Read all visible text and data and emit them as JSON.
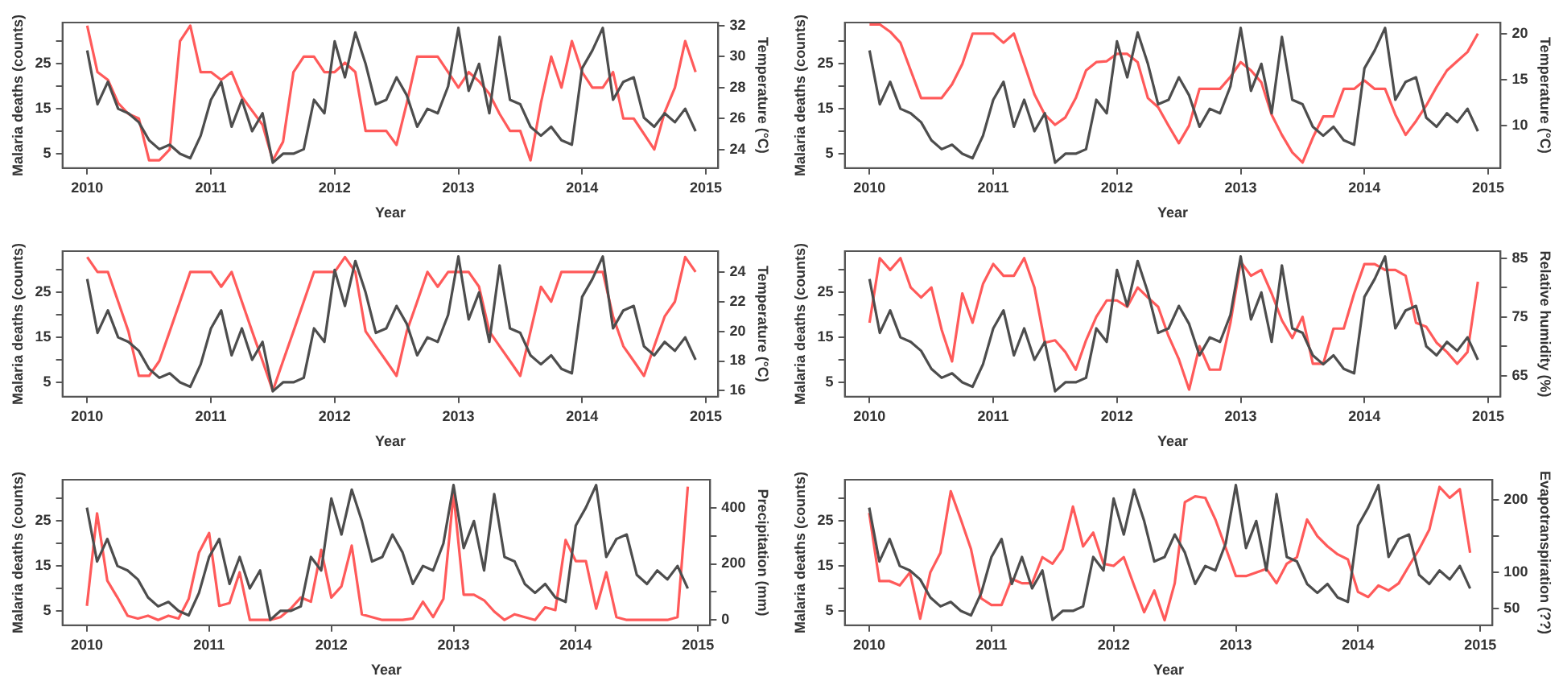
{
  "chart_data": [
    {
      "type": "line",
      "xlabel": "Year",
      "ylabel": "Malaria deaths (counts)",
      "y2label": "Temperature (°C)",
      "grid": false,
      "legend": false,
      "marker": "none",
      "line_style": "solid",
      "x": [
        2010,
        2010.083,
        2010.167,
        2010.25,
        2010.333,
        2010.417,
        2010.5,
        2010.583,
        2010.667,
        2010.75,
        2010.833,
        2010.917,
        2011,
        2011.083,
        2011.167,
        2011.25,
        2011.333,
        2011.417,
        2011.5,
        2011.583,
        2011.667,
        2011.75,
        2011.833,
        2011.917,
        2012,
        2012.083,
        2012.167,
        2012.25,
        2012.333,
        2012.417,
        2012.5,
        2012.583,
        2012.667,
        2012.75,
        2012.833,
        2012.917,
        2013,
        2013.083,
        2013.167,
        2013.25,
        2013.333,
        2013.417,
        2013.5,
        2013.583,
        2013.667,
        2013.75,
        2013.833,
        2013.917,
        2014,
        2014.083,
        2014.167,
        2014.25,
        2014.333,
        2014.417,
        2014.5,
        2014.583,
        2014.667,
        2014.75,
        2014.833,
        2014.917
      ],
      "xlim": [
        2009.8,
        2015.1
      ],
      "xticks": [
        2010,
        2011,
        2012,
        2013,
        2014,
        2015
      ],
      "ylim": [
        1.8,
        34.2
      ],
      "yticks": [
        5,
        {
          "value": 10,
          "label": null
        },
        15,
        {
          "value": 20,
          "label": null
        },
        25,
        {
          "value": 30,
          "label": null
        }
      ],
      "y2lim": [
        22.8,
        32.2
      ],
      "y2ticks": [
        24,
        26,
        28,
        30,
        32
      ],
      "series": [
        {
          "color": "#4d4d4d",
          "values": [
            28,
            16,
            21,
            15,
            14,
            12,
            8,
            6,
            7,
            5,
            4,
            9,
            17,
            21,
            11,
            17,
            10,
            14,
            3,
            5,
            5,
            6,
            17,
            14,
            30,
            22,
            32,
            25,
            16,
            17,
            22,
            18,
            11,
            15,
            14,
            20,
            33,
            19,
            25,
            14,
            31,
            17,
            16,
            11,
            9,
            11,
            8,
            7,
            24,
            28,
            33,
            17,
            21,
            22,
            13,
            11,
            14,
            12,
            15,
            10
          ]
        },
        {
          "color": "#ff5a5a",
          "axis": "y2",
          "values": [
            32,
            29,
            28.5,
            27,
            26.3,
            26,
            23.3,
            23.3,
            24,
            31,
            32,
            29,
            29,
            28.5,
            29,
            27.4,
            26.5,
            25.6,
            23.3,
            24.5,
            29,
            30,
            30,
            29,
            29,
            29.6,
            29,
            25.2,
            25.2,
            25.2,
            24.3,
            27,
            30,
            30,
            30,
            29,
            28,
            29,
            28.4,
            27.6,
            26.3,
            25.2,
            25.2,
            23.3,
            27,
            30,
            28,
            31,
            29,
            28,
            28,
            29,
            26,
            26,
            25,
            24,
            26.4,
            28,
            31,
            29
          ]
        }
      ]
    },
    {
      "type": "line",
      "xlabel": "Year",
      "ylabel": "Malaria deaths (counts)",
      "y2label": "Temperature (°C)",
      "grid": false,
      "legend": false,
      "marker": "none",
      "line_style": "solid",
      "x": [
        2010,
        2010.083,
        2010.167,
        2010.25,
        2010.333,
        2010.417,
        2010.5,
        2010.583,
        2010.667,
        2010.75,
        2010.833,
        2010.917,
        2011,
        2011.083,
        2011.167,
        2011.25,
        2011.333,
        2011.417,
        2011.5,
        2011.583,
        2011.667,
        2011.75,
        2011.833,
        2011.917,
        2012,
        2012.083,
        2012.167,
        2012.25,
        2012.333,
        2012.417,
        2012.5,
        2012.583,
        2012.667,
        2012.75,
        2012.833,
        2012.917,
        2013,
        2013.083,
        2013.167,
        2013.25,
        2013.333,
        2013.417,
        2013.5,
        2013.583,
        2013.667,
        2013.75,
        2013.833,
        2013.917,
        2014,
        2014.083,
        2014.167,
        2014.25,
        2014.333,
        2014.417,
        2014.5,
        2014.583,
        2014.667,
        2014.75,
        2014.833,
        2014.917
      ],
      "xlim": [
        2009.8,
        2015.1
      ],
      "xticks": [
        2010,
        2011,
        2012,
        2013,
        2014,
        2015
      ],
      "ylim": [
        1.8,
        34.2
      ],
      "yticks": [
        5,
        {
          "value": 10,
          "label": null
        },
        15,
        {
          "value": 20,
          "label": null
        },
        25,
        {
          "value": 30,
          "label": null
        }
      ],
      "y2lim": [
        5.4,
        21.2
      ],
      "y2ticks": [
        10,
        15,
        20
      ],
      "series": [
        {
          "color": "#4d4d4d",
          "values": [
            28,
            16,
            21,
            15,
            14,
            12,
            8,
            6,
            7,
            5,
            4,
            9,
            17,
            21,
            11,
            17,
            10,
            14,
            3,
            5,
            5,
            6,
            17,
            14,
            30,
            22,
            32,
            25,
            16,
            17,
            22,
            18,
            11,
            15,
            14,
            20,
            33,
            19,
            25,
            14,
            31,
            17,
            16,
            11,
            9,
            11,
            8,
            7,
            24,
            28,
            33,
            17,
            21,
            22,
            13,
            11,
            14,
            12,
            15,
            10
          ]
        },
        {
          "color": "#ff5a5a",
          "axis": "y2",
          "values": [
            21,
            21,
            20.2,
            19,
            16,
            13,
            13,
            13,
            14.5,
            16.7,
            20,
            20,
            20,
            19,
            20,
            16.7,
            13.4,
            11.2,
            10.1,
            10.9,
            13,
            16,
            16.9,
            17,
            17.8,
            17.8,
            16.9,
            13,
            12,
            10,
            8.1,
            10,
            14,
            14,
            14,
            15.3,
            16.9,
            16,
            14.7,
            11.2,
            9,
            7.1,
            6,
            8.7,
            11,
            11,
            14,
            14,
            14.9,
            14,
            14,
            11.2,
            9,
            10.5,
            12.2,
            14.2,
            16,
            17,
            18,
            20
          ]
        }
      ]
    },
    {
      "type": "line",
      "xlabel": "Year",
      "ylabel": "Malaria deaths (counts)",
      "y2label": "Temperature (°C)",
      "grid": false,
      "legend": false,
      "marker": "none",
      "line_style": "solid",
      "x": [
        2010,
        2010.083,
        2010.167,
        2010.25,
        2010.333,
        2010.417,
        2010.5,
        2010.583,
        2010.667,
        2010.75,
        2010.833,
        2010.917,
        2011,
        2011.083,
        2011.167,
        2011.25,
        2011.333,
        2011.417,
        2011.5,
        2011.583,
        2011.667,
        2011.75,
        2011.833,
        2011.917,
        2012,
        2012.083,
        2012.167,
        2012.25,
        2012.333,
        2012.417,
        2012.5,
        2012.583,
        2012.667,
        2012.75,
        2012.833,
        2012.917,
        2013,
        2013.083,
        2013.167,
        2013.25,
        2013.333,
        2013.417,
        2013.5,
        2013.583,
        2013.667,
        2013.75,
        2013.833,
        2013.917,
        2014,
        2014.083,
        2014.167,
        2014.25,
        2014.333,
        2014.417,
        2014.5,
        2014.583,
        2014.667,
        2014.75,
        2014.833,
        2014.917
      ],
      "xlim": [
        2009.8,
        2015.1
      ],
      "xticks": [
        2010,
        2011,
        2012,
        2013,
        2014,
        2015
      ],
      "ylim": [
        1.8,
        34.2
      ],
      "yticks": [
        5,
        {
          "value": 10,
          "label": null
        },
        15,
        {
          "value": 20,
          "label": null
        },
        25,
        {
          "value": 30,
          "label": null
        }
      ],
      "y2lim": [
        15.6,
        25.4
      ],
      "y2ticks": [
        16,
        18,
        20,
        22,
        24
      ],
      "series": [
        {
          "color": "#4d4d4d",
          "values": [
            28,
            16,
            21,
            15,
            14,
            12,
            8,
            6,
            7,
            5,
            4,
            9,
            17,
            21,
            11,
            17,
            10,
            14,
            3,
            5,
            5,
            6,
            17,
            14,
            30,
            22,
            32,
            25,
            16,
            17,
            22,
            18,
            11,
            15,
            14,
            20,
            33,
            19,
            25,
            14,
            31,
            17,
            16,
            11,
            9,
            11,
            8,
            7,
            24,
            28,
            33,
            17,
            21,
            22,
            13,
            11,
            14,
            12,
            15,
            10
          ]
        },
        {
          "color": "#ff5a5a",
          "axis": "y2",
          "values": [
            25,
            24,
            24,
            22,
            20,
            17,
            17,
            18,
            20,
            22,
            24,
            24,
            24,
            23,
            24,
            22,
            20,
            18,
            16,
            18,
            20,
            22,
            24,
            24,
            24,
            25,
            24,
            20,
            19,
            18,
            17,
            20,
            22,
            24,
            23,
            24,
            24,
            24,
            23,
            20,
            19,
            18,
            17,
            20,
            23,
            22,
            24,
            24,
            24,
            24,
            24,
            21,
            19,
            18,
            17,
            19,
            21,
            22,
            25,
            24
          ]
        }
      ]
    },
    {
      "type": "line",
      "xlabel": "Year",
      "ylabel": "Malaria deaths (counts)",
      "y2label": "Relative humidity (%)",
      "grid": false,
      "legend": false,
      "marker": "none",
      "line_style": "solid",
      "x": [
        2010,
        2010.083,
        2010.167,
        2010.25,
        2010.333,
        2010.417,
        2010.5,
        2010.583,
        2010.667,
        2010.75,
        2010.833,
        2010.917,
        2011,
        2011.083,
        2011.167,
        2011.25,
        2011.333,
        2011.417,
        2011.5,
        2011.583,
        2011.667,
        2011.75,
        2011.833,
        2011.917,
        2012,
        2012.083,
        2012.167,
        2012.25,
        2012.333,
        2012.417,
        2012.5,
        2012.583,
        2012.667,
        2012.75,
        2012.833,
        2012.917,
        2013,
        2013.083,
        2013.167,
        2013.25,
        2013.333,
        2013.417,
        2013.5,
        2013.583,
        2013.667,
        2013.75,
        2013.833,
        2013.917,
        2014,
        2014.083,
        2014.167,
        2014.25,
        2014.333,
        2014.417,
        2014.5,
        2014.583,
        2014.667,
        2014.75,
        2014.833,
        2014.917
      ],
      "xlim": [
        2009.8,
        2015.1
      ],
      "xticks": [
        2010,
        2011,
        2012,
        2013,
        2014,
        2015
      ],
      "ylim": [
        1.8,
        34.2
      ],
      "yticks": [
        5,
        {
          "value": 10,
          "label": null
        },
        15,
        {
          "value": 20,
          "label": null
        },
        25,
        {
          "value": 30,
          "label": null
        }
      ],
      "y2lim": [
        61.4,
        86.2
      ],
      "y2ticks": [
        65,
        {
          "value": 70,
          "label": null
        },
        75,
        {
          "value": 80,
          "label": null
        },
        85
      ],
      "series": [
        {
          "color": "#4d4d4d",
          "values": [
            28,
            16,
            21,
            15,
            14,
            12,
            8,
            6,
            7,
            5,
            4,
            9,
            17,
            21,
            11,
            17,
            10,
            14,
            3,
            5,
            5,
            6,
            17,
            14,
            30,
            22,
            32,
            25,
            16,
            17,
            22,
            18,
            11,
            15,
            14,
            20,
            33,
            19,
            25,
            14,
            31,
            17,
            16,
            11,
            9,
            11,
            8,
            7,
            24,
            28,
            33,
            17,
            21,
            22,
            13,
            11,
            14,
            12,
            15,
            10
          ]
        },
        {
          "color": "#ff5a5a",
          "axis": "y2",
          "values": [
            74,
            85,
            83,
            85,
            80,
            78.3,
            80,
            72.8,
            67.4,
            79,
            74,
            80.6,
            84,
            82,
            82,
            85,
            80,
            70.6,
            71,
            69,
            66,
            71,
            75,
            77.8,
            77.8,
            76.7,
            80,
            78.3,
            76.7,
            71.7,
            67.8,
            62.6,
            70,
            66,
            66,
            74,
            84.4,
            82,
            83,
            79,
            74.4,
            71.4,
            75,
            67,
            67,
            73,
            73,
            79,
            84,
            84,
            83,
            83,
            82,
            74,
            73.3,
            70.6,
            69,
            67,
            69,
            81
          ]
        }
      ]
    },
    {
      "type": "line",
      "xlabel": "Year",
      "ylabel": "Malaria deaths (counts)",
      "y2label": "Precipitation (mm)",
      "grid": false,
      "legend": false,
      "marker": "none",
      "line_style": "solid",
      "x": [
        2010,
        2010.083,
        2010.167,
        2010.25,
        2010.333,
        2010.417,
        2010.5,
        2010.583,
        2010.667,
        2010.75,
        2010.833,
        2010.917,
        2011,
        2011.083,
        2011.167,
        2011.25,
        2011.333,
        2011.417,
        2011.5,
        2011.583,
        2011.667,
        2011.75,
        2011.833,
        2011.917,
        2012,
        2012.083,
        2012.167,
        2012.25,
        2012.333,
        2012.417,
        2012.5,
        2012.583,
        2012.667,
        2012.75,
        2012.833,
        2012.917,
        2013,
        2013.083,
        2013.167,
        2013.25,
        2013.333,
        2013.417,
        2013.5,
        2013.583,
        2013.667,
        2013.75,
        2013.833,
        2013.917,
        2014,
        2014.083,
        2014.167,
        2014.25,
        2014.333,
        2014.417,
        2014.5,
        2014.583,
        2014.667,
        2014.75,
        2014.833,
        2014.917
      ],
      "xlim": [
        2009.8,
        2015.1
      ],
      "xticks": [
        2010,
        2011,
        2012,
        2013,
        2014,
        2015
      ],
      "ylim": [
        1.8,
        34.2
      ],
      "yticks": [
        5,
        {
          "value": 10,
          "label": null
        },
        15,
        {
          "value": 20,
          "label": null
        },
        25,
        {
          "value": 30,
          "label": null
        }
      ],
      "y2lim": [
        -19,
        500
      ],
      "y2ticks": [
        0,
        {
          "value": 100,
          "label": null
        },
        200,
        {
          "value": 300,
          "label": null
        },
        400
      ],
      "series": [
        {
          "color": "#4d4d4d",
          "values": [
            28,
            16,
            21,
            15,
            14,
            12,
            8,
            6,
            7,
            5,
            4,
            9,
            17,
            21,
            11,
            17,
            10,
            14,
            3,
            5,
            5,
            6,
            17,
            14,
            30,
            22,
            32,
            25,
            16,
            17,
            22,
            18,
            11,
            15,
            14,
            20,
            33,
            19,
            25,
            14,
            31,
            17,
            16,
            11,
            9,
            11,
            8,
            7,
            24,
            28,
            33,
            17,
            21,
            22,
            13,
            11,
            14,
            12,
            15,
            10
          ]
        },
        {
          "color": "#ff5a5a",
          "axis": "y2",
          "values": [
            50,
            380,
            140,
            80,
            15,
            5,
            15,
            0,
            15,
            5,
            75,
            240,
            310,
            50,
            60,
            170,
            0,
            0,
            0,
            10,
            40,
            80,
            65,
            250,
            80,
            120,
            265,
            20,
            10,
            0,
            0,
            0,
            5,
            65,
            10,
            75,
            450,
            90,
            90,
            70,
            30,
            0,
            20,
            10,
            0,
            45,
            35,
            285,
            210,
            210,
            40,
            170,
            10,
            0,
            0,
            0,
            0,
            0,
            10,
            475
          ]
        }
      ]
    },
    {
      "type": "line",
      "xlabel": "Year",
      "ylabel": "Malaria deaths (counts)",
      "y2label": "Evapotranspiration (??)",
      "grid": false,
      "legend": false,
      "marker": "none",
      "line_style": "solid",
      "x": [
        2010,
        2010.083,
        2010.167,
        2010.25,
        2010.333,
        2010.417,
        2010.5,
        2010.583,
        2010.667,
        2010.75,
        2010.833,
        2010.917,
        2011,
        2011.083,
        2011.167,
        2011.25,
        2011.333,
        2011.417,
        2011.5,
        2011.583,
        2011.667,
        2011.75,
        2011.833,
        2011.917,
        2012,
        2012.083,
        2012.167,
        2012.25,
        2012.333,
        2012.417,
        2012.5,
        2012.583,
        2012.667,
        2012.75,
        2012.833,
        2012.917,
        2013,
        2013.083,
        2013.167,
        2013.25,
        2013.333,
        2013.417,
        2013.5,
        2013.583,
        2013.667,
        2013.75,
        2013.833,
        2013.917,
        2014,
        2014.083,
        2014.167,
        2014.25,
        2014.333,
        2014.417,
        2014.5,
        2014.583,
        2014.667,
        2014.75,
        2014.833,
        2014.917
      ],
      "xlim": [
        2009.8,
        2015.1
      ],
      "xticks": [
        2010,
        2011,
        2012,
        2013,
        2014,
        2015
      ],
      "ylim": [
        1.8,
        34.2
      ],
      "yticks": [
        5,
        {
          "value": 10,
          "label": null
        },
        15,
        {
          "value": 20,
          "label": null
        },
        25,
        {
          "value": 30,
          "label": null
        }
      ],
      "y2lim": [
        27,
        228
      ],
      "y2ticks": [
        50,
        100,
        {
          "value": 150,
          "label": null
        },
        200
      ],
      "series": [
        {
          "color": "#4d4d4d",
          "values": [
            28,
            16,
            21,
            15,
            14,
            12,
            8,
            6,
            7,
            5,
            4,
            9,
            17,
            21,
            11,
            17,
            10,
            14,
            3,
            5,
            5,
            6,
            17,
            14,
            30,
            22,
            32,
            25,
            16,
            17,
            22,
            18,
            11,
            15,
            14,
            20,
            33,
            19,
            25,
            14,
            31,
            17,
            16,
            11,
            9,
            11,
            8,
            7,
            24,
            28,
            33,
            17,
            21,
            22,
            13,
            11,
            14,
            12,
            15,
            10
          ]
        },
        {
          "color": "#ff5a5a",
          "axis": "y2",
          "values": [
            182,
            88,
            88,
            82,
            100,
            36,
            100,
            127,
            212,
            173,
            132,
            64,
            55,
            55,
            91,
            85,
            85,
            121,
            112,
            132,
            191,
            136,
            155,
            112,
            109,
            121,
            82,
            45,
            75,
            34,
            85,
            197,
            205,
            203,
            173,
            134,
            95,
            95,
            100,
            105,
            85,
            112,
            121,
            173,
            150,
            136,
            125,
            118,
            73,
            66,
            82,
            75,
            85,
            109,
            132,
            159,
            218,
            203,
            215,
            127
          ]
        }
      ]
    }
  ]
}
